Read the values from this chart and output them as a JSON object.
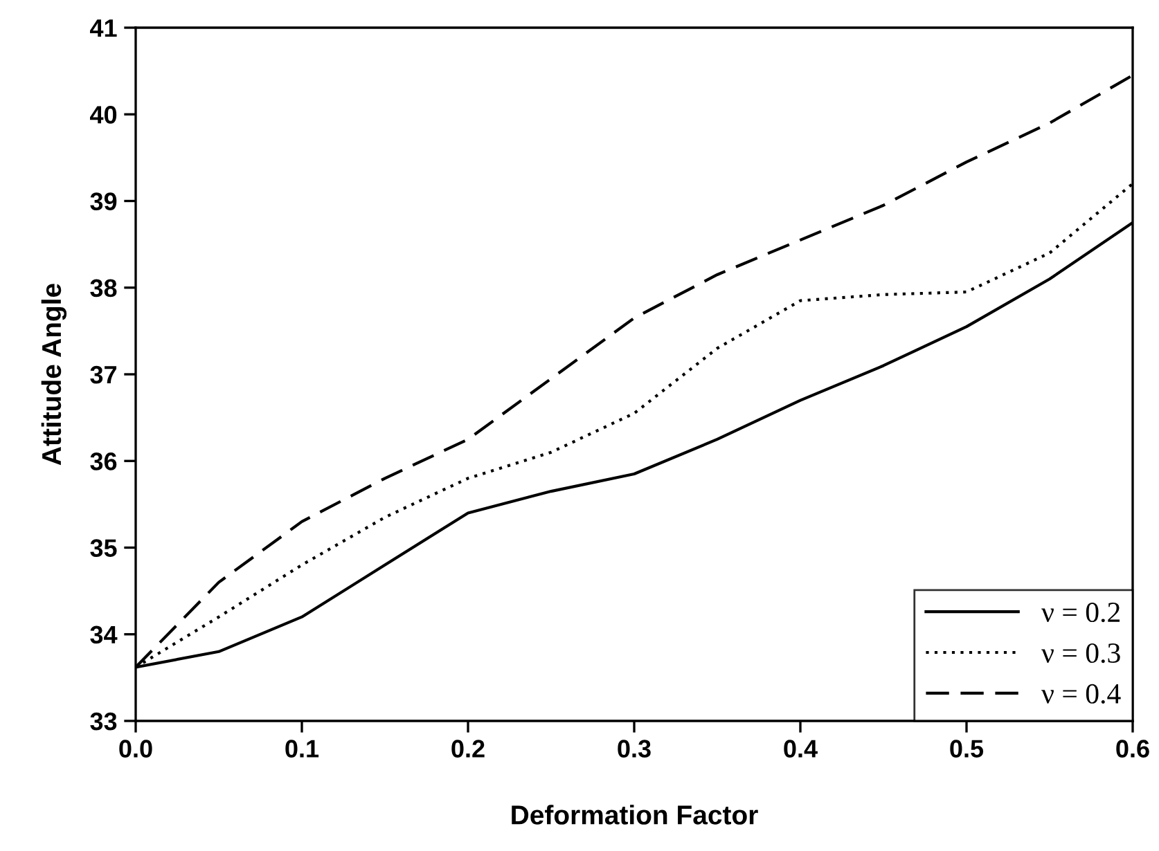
{
  "chart_data": {
    "type": "line",
    "xlabel": "Deformation Factor",
    "ylabel": "Attitude Angle",
    "x": [
      0,
      0.05,
      0.1,
      0.15,
      0.2,
      0.25,
      0.3,
      0.35,
      0.4,
      0.45,
      0.5,
      0.55,
      0.6
    ],
    "series": [
      {
        "name": "ν = 0.2",
        "color": "#000000",
        "line_style": "solid",
        "values": [
          33.62,
          33.8,
          34.2,
          34.8,
          35.4,
          35.65,
          35.85,
          36.25,
          36.7,
          37.1,
          37.55,
          38.1,
          38.75
        ]
      },
      {
        "name": "ν = 0.3",
        "color": "#000000",
        "line_style": "dotted",
        "values": [
          33.62,
          34.2,
          34.8,
          35.35,
          35.8,
          36.1,
          36.55,
          37.3,
          37.85,
          37.92,
          37.95,
          38.4,
          39.2
        ]
      },
      {
        "name": "ν = 0.4",
        "color": "#000000",
        "line_style": "dashed",
        "values": [
          33.62,
          34.6,
          35.3,
          35.8,
          36.25,
          36.95,
          37.65,
          38.15,
          38.55,
          38.95,
          39.45,
          39.9,
          40.45
        ]
      }
    ],
    "xlim": [
      0,
      0.6
    ],
    "xticks": [
      {
        "value": 0,
        "label": "0.0"
      },
      0.1,
      0.2,
      0.3,
      0.4,
      0.5,
      0.6
    ],
    "ylim": [
      33,
      41
    ],
    "yticks": [
      33,
      34,
      35,
      36,
      37,
      38,
      39,
      40,
      41
    ],
    "grid": false,
    "legend": "bottom right",
    "marker": "none"
  }
}
